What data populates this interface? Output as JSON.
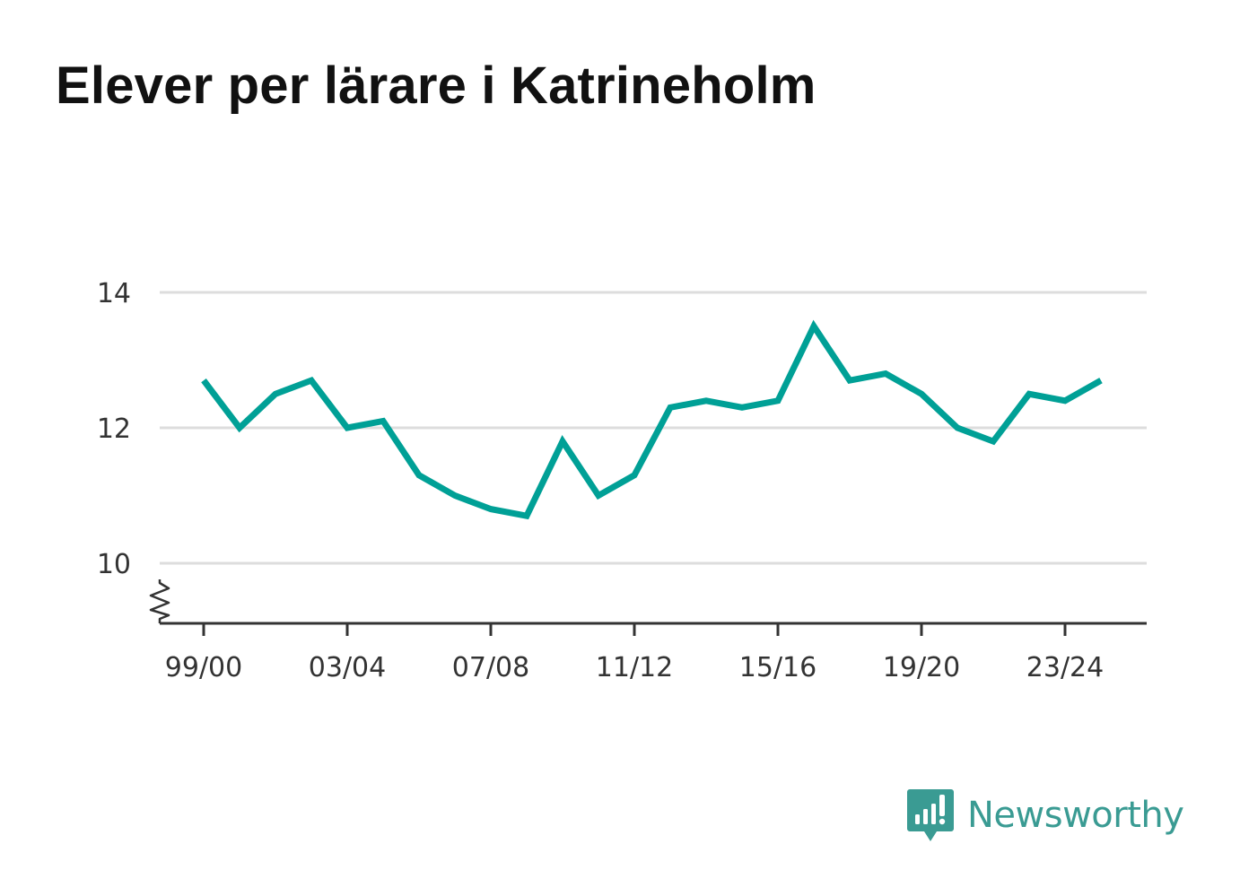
{
  "title": "Elever per lärare i Katrineholm",
  "brand": {
    "name": "Newsworthy",
    "color": "#3a9b93"
  },
  "colors": {
    "line": "#00a096",
    "grid": "#dddddd",
    "axis": "#333333"
  },
  "chart_data": {
    "type": "line",
    "title": "Elever per lärare i Katrineholm",
    "xlabel": "",
    "ylabel": "",
    "categories": [
      "99/00",
      "00/01",
      "01/02",
      "02/03",
      "03/04",
      "04/05",
      "05/06",
      "06/07",
      "07/08",
      "08/09",
      "09/10",
      "10/11",
      "11/12",
      "12/13",
      "13/14",
      "14/15",
      "15/16",
      "16/17",
      "17/18",
      "18/19",
      "19/20",
      "20/21",
      "21/22",
      "22/23",
      "23/24",
      "24/25"
    ],
    "x_tick_labels": [
      "99/00",
      "03/04",
      "07/08",
      "11/12",
      "15/16",
      "19/20",
      "23/24"
    ],
    "y_ticks": [
      10,
      12,
      14
    ],
    "ylim": [
      9.1,
      14
    ],
    "grid": true,
    "axis_break": true,
    "series": [
      {
        "values": [
          12.7,
          12.0,
          12.5,
          12.7,
          12.0,
          12.1,
          11.3,
          11.0,
          10.8,
          10.7,
          11.8,
          11.0,
          11.3,
          12.3,
          12.4,
          12.3,
          12.4,
          13.5,
          12.7,
          12.8,
          12.5,
          12.0,
          11.8,
          12.5,
          12.4,
          12.7
        ]
      }
    ]
  }
}
